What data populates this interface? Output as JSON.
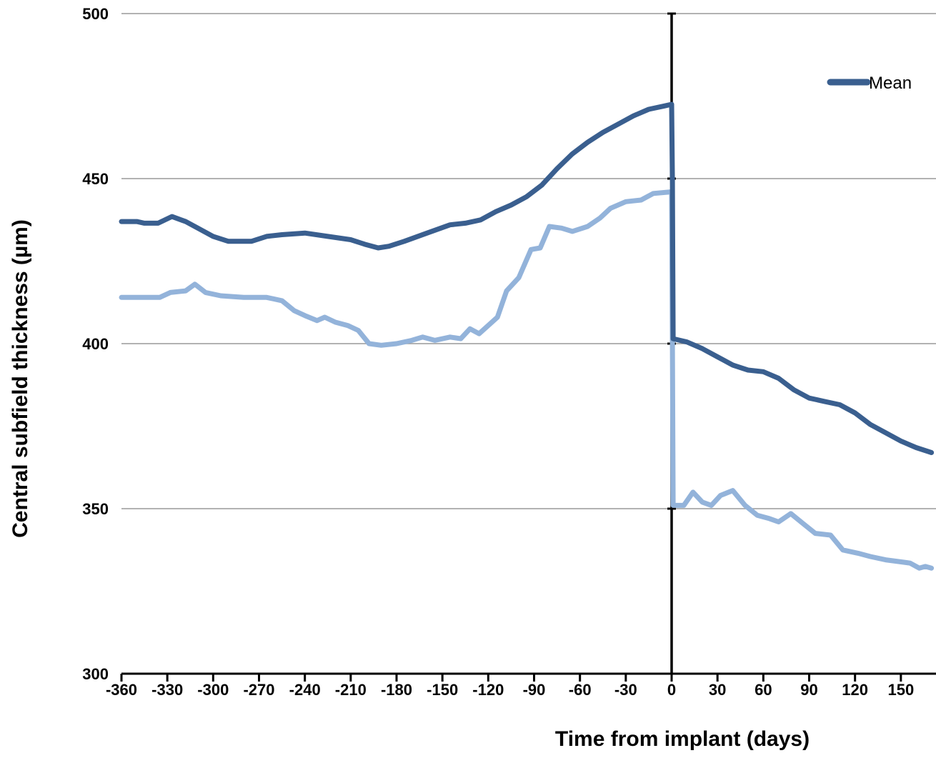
{
  "chart_data": {
    "type": "line",
    "title": "",
    "xlabel": "Time from implant (days)",
    "ylabel": "Central subfield thickness (µm)",
    "xlim": [
      -360,
      170
    ],
    "ylim": [
      300,
      500
    ],
    "x_ticks": [
      -360,
      -330,
      -300,
      -270,
      -240,
      -210,
      -180,
      -150,
      -120,
      -90,
      -60,
      -30,
      0,
      30,
      60,
      90,
      120,
      150
    ],
    "x_tick_labels": [
      "-360",
      "-330",
      "-300",
      "-270",
      "-240",
      "-210",
      "-180",
      "-150",
      "-120",
      "-90",
      "-60",
      "-30",
      "0",
      "30",
      "60",
      "90",
      "120",
      "150"
    ],
    "y_ticks": [
      300,
      350,
      400,
      450,
      500
    ],
    "y_tick_labels": [
      "300",
      "350",
      "400",
      "450",
      "500"
    ],
    "grid": "horizontal",
    "legend_position": "top-right",
    "colors": {
      "mean": "#3a5f8f",
      "second": "#93b3da",
      "axis": "#000000",
      "grid": "#999999"
    },
    "series": [
      {
        "name": "Mean",
        "color": "#3a5f8f",
        "points": [
          [
            -360,
            437
          ],
          [
            -350,
            437
          ],
          [
            -345,
            436.5
          ],
          [
            -336,
            436.5
          ],
          [
            -327,
            438.5
          ],
          [
            -318,
            437
          ],
          [
            -310,
            435
          ],
          [
            -300,
            432.5
          ],
          [
            -290,
            431
          ],
          [
            -275,
            431
          ],
          [
            -265,
            432.5
          ],
          [
            -255,
            433
          ],
          [
            -240,
            433.5
          ],
          [
            -225,
            432.5
          ],
          [
            -210,
            431.5
          ],
          [
            -200,
            430
          ],
          [
            -192,
            429
          ],
          [
            -185,
            429.5
          ],
          [
            -175,
            431
          ],
          [
            -160,
            433.5
          ],
          [
            -145,
            436
          ],
          [
            -135,
            436.5
          ],
          [
            -125,
            437.5
          ],
          [
            -115,
            440
          ],
          [
            -105,
            442
          ],
          [
            -95,
            444.5
          ],
          [
            -85,
            448
          ],
          [
            -75,
            453
          ],
          [
            -65,
            457.5
          ],
          [
            -55,
            461
          ],
          [
            -45,
            464
          ],
          [
            -35,
            466.5
          ],
          [
            -25,
            469
          ],
          [
            -15,
            471
          ],
          [
            -5,
            472
          ],
          [
            0,
            472.5
          ],
          [
            0.5,
            449
          ],
          [
            1,
            401.5
          ],
          [
            10,
            400.5
          ],
          [
            20,
            398.5
          ],
          [
            30,
            396
          ],
          [
            40,
            393.5
          ],
          [
            50,
            392
          ],
          [
            60,
            391.5
          ],
          [
            70,
            389.5
          ],
          [
            80,
            386
          ],
          [
            90,
            383.5
          ],
          [
            100,
            382.5
          ],
          [
            110,
            381.5
          ],
          [
            120,
            379
          ],
          [
            130,
            375.5
          ],
          [
            140,
            373
          ],
          [
            150,
            370.5
          ],
          [
            160,
            368.5
          ],
          [
            170,
            367
          ]
        ]
      },
      {
        "name": "",
        "color": "#93b3da",
        "points": [
          [
            -360,
            414
          ],
          [
            -335,
            414
          ],
          [
            -328,
            415.5
          ],
          [
            -318,
            416
          ],
          [
            -312,
            418
          ],
          [
            -305,
            415.5
          ],
          [
            -295,
            414.5
          ],
          [
            -280,
            414
          ],
          [
            -265,
            414
          ],
          [
            -255,
            413
          ],
          [
            -247,
            410
          ],
          [
            -240,
            408.5
          ],
          [
            -232,
            407
          ],
          [
            -227,
            408
          ],
          [
            -220,
            406.5
          ],
          [
            -212,
            405.5
          ],
          [
            -205,
            404
          ],
          [
            -198,
            400
          ],
          [
            -190,
            399.5
          ],
          [
            -180,
            400
          ],
          [
            -170,
            401
          ],
          [
            -163,
            402
          ],
          [
            -155,
            401
          ],
          [
            -145,
            402
          ],
          [
            -138,
            401.5
          ],
          [
            -132,
            404.5
          ],
          [
            -126,
            403
          ],
          [
            -120,
            405.5
          ],
          [
            -114,
            408
          ],
          [
            -108,
            416
          ],
          [
            -100,
            420
          ],
          [
            -92,
            428.5
          ],
          [
            -86,
            429
          ],
          [
            -80,
            435.5
          ],
          [
            -72,
            435
          ],
          [
            -65,
            434
          ],
          [
            -55,
            435.5
          ],
          [
            -47,
            438
          ],
          [
            -40,
            441
          ],
          [
            -30,
            443
          ],
          [
            -20,
            443.5
          ],
          [
            -12,
            445.5
          ],
          [
            0,
            446
          ],
          [
            0.5,
            400
          ],
          [
            1,
            351
          ],
          [
            8,
            351
          ],
          [
            14,
            355
          ],
          [
            20,
            352
          ],
          [
            26,
            351
          ],
          [
            32,
            354
          ],
          [
            40,
            355.5
          ],
          [
            48,
            351
          ],
          [
            56,
            348
          ],
          [
            64,
            347
          ],
          [
            70,
            346
          ],
          [
            78,
            348.5
          ],
          [
            86,
            345.5
          ],
          [
            94,
            342.5
          ],
          [
            104,
            342
          ],
          [
            112,
            337.5
          ],
          [
            122,
            336.5
          ],
          [
            130,
            335.5
          ],
          [
            140,
            334.5
          ],
          [
            148,
            334
          ],
          [
            156,
            333.5
          ],
          [
            162,
            332
          ],
          [
            166,
            332.5
          ],
          [
            170,
            332
          ]
        ]
      }
    ],
    "vertical_marker_x": 0
  }
}
